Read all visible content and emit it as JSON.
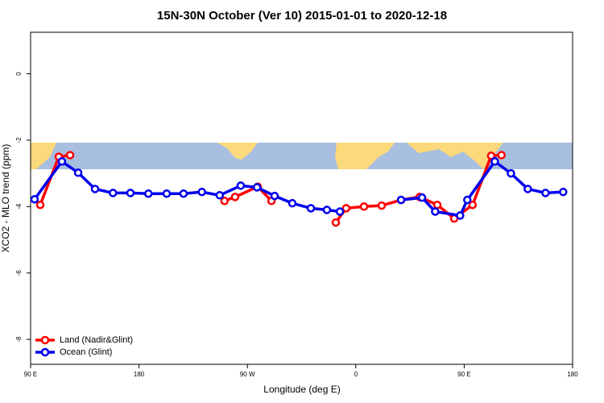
{
  "chart_data": {
    "type": "line",
    "title": "15N-30N October (Ver 10)   2015-01-01 to 2020-12-18",
    "xlabel": "Longitude (deg E)",
    "ylabel": "XCO2 - MLO trend (ppm)",
    "xlim": [
      90,
      540
    ],
    "ylim": [
      -8.75,
      1.25
    ],
    "xticks": [
      {
        "value": 90,
        "label": "90 E"
      },
      180,
      {
        "value": 270,
        "label": "90 W"
      },
      {
        "value": 360,
        "label": "0"
      },
      {
        "value": 450,
        "label": "90 E"
      },
      {
        "value": 540,
        "label": "180"
      }
    ],
    "yticks": [
      0,
      -2,
      -4,
      -6,
      -8
    ],
    "legend": "bottom-left",
    "series": [
      {
        "name": "Land (Nadir&Glint)",
        "color": "#ff0000",
        "x": [
          98,
          113.4,
          122.8,
          null,
          251,
          259.8,
          278.6,
          290,
          null,
          343.4,
          352,
          366.8,
          381.5,
          397.6,
          413,
          427.7,
          441.7,
          457,
          472.4,
          481
        ],
        "values": [
          -3.95,
          -2.5,
          -2.45,
          null,
          -3.83,
          -3.71,
          -3.4,
          -3.83,
          null,
          -4.48,
          -4.05,
          -4.0,
          -3.97,
          -3.8,
          -3.71,
          -3.95,
          -4.36,
          -3.95,
          -2.47,
          -2.45
        ]
      },
      {
        "name": "Ocean (Glint)",
        "color": "#0000ee",
        "x": [
          93.3,
          116,
          129.5,
          143.5,
          158.4,
          172.9,
          187.8,
          203,
          217,
          232.2,
          247,
          264.5,
          278,
          292.6,
          307.3,
          322.7,
          336,
          346.8,
          null,
          397.6,
          415,
          425.9,
          446.6,
          452.6,
          475.4,
          488.8,
          502.8,
          517.5,
          532.2
        ],
        "values": [
          -3.78,
          -2.64,
          -2.98,
          -3.47,
          -3.59,
          -3.59,
          -3.61,
          -3.61,
          -3.61,
          -3.56,
          -3.66,
          -3.37,
          -3.42,
          -3.68,
          -3.9,
          -4.05,
          -4.1,
          -4.15,
          null,
          -3.8,
          -3.73,
          -4.15,
          -4.27,
          -3.8,
          -2.64,
          -3.0,
          -3.47,
          -3.59,
          -3.56
        ]
      }
    ]
  }
}
